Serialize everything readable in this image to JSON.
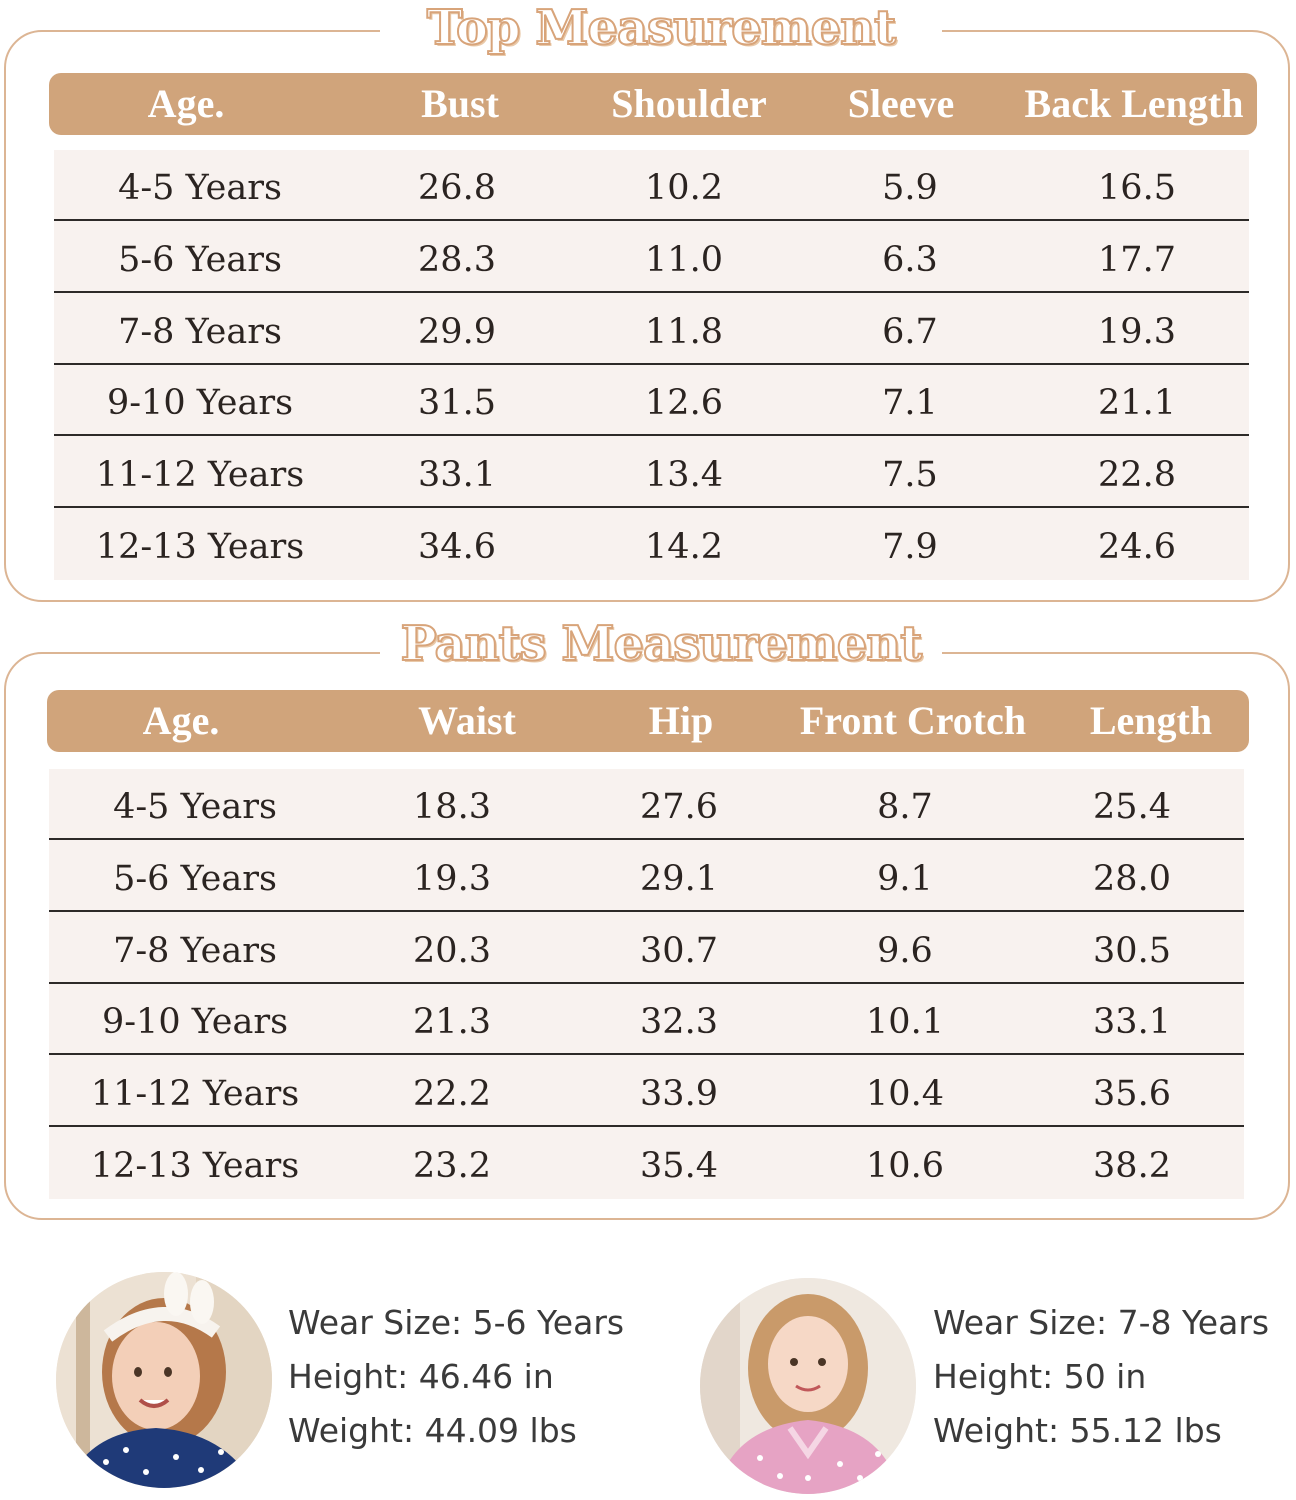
{
  "top": {
    "title": "Top Measurement",
    "headers": [
      "Age.",
      "Bust",
      "Shoulder",
      "Sleeve",
      "Back Length"
    ],
    "rows": [
      [
        "4-5 Years",
        "26.8",
        "10.2",
        "5.9",
        "16.5"
      ],
      [
        "5-6 Years",
        "28.3",
        "11.0",
        "6.3",
        "17.7"
      ],
      [
        "7-8 Years",
        "29.9",
        "11.8",
        "6.7",
        "19.3"
      ],
      [
        "9-10 Years",
        "31.5",
        "12.6",
        "7.1",
        "21.1"
      ],
      [
        "11-12 Years",
        "33.1",
        "13.4",
        "7.5",
        "22.8"
      ],
      [
        "12-13 Years",
        "34.6",
        "14.2",
        "7.9",
        "24.6"
      ]
    ]
  },
  "pants": {
    "title": "Pants Measurement",
    "headers": [
      "Age.",
      "Waist",
      "Hip",
      "Front Crotch",
      "Length"
    ],
    "rows": [
      [
        "4-5 Years",
        "18.3",
        "27.6",
        "8.7",
        "25.4"
      ],
      [
        "5-6 Years",
        "19.3",
        "29.1",
        "9.1",
        "28.0"
      ],
      [
        "7-8 Years",
        "20.3",
        "30.7",
        "9.6",
        "30.5"
      ],
      [
        "9-10 Years",
        "21.3",
        "32.3",
        "10.1",
        "33.1"
      ],
      [
        "11-12 Years",
        "22.2",
        "33.9",
        "10.4",
        "35.6"
      ],
      [
        "12-13 Years",
        "23.2",
        "35.4",
        "10.6",
        "38.2"
      ]
    ]
  },
  "models": [
    {
      "wear_size": "Wear Size: 5-6 Years",
      "height": "Height: 46.46 in",
      "weight": "Weight: 44.09 lbs",
      "outfit_color": "#1f3a78"
    },
    {
      "wear_size": "Wear Size: 7-8 Years",
      "height": "Height: 50 in",
      "weight": "Weight: 55.12 lbs",
      "outfit_color": "#e6a3c4"
    }
  ],
  "colors": {
    "accent": "#d0a47b",
    "border": "#dcb594",
    "row_background": "#f8f2ef"
  }
}
